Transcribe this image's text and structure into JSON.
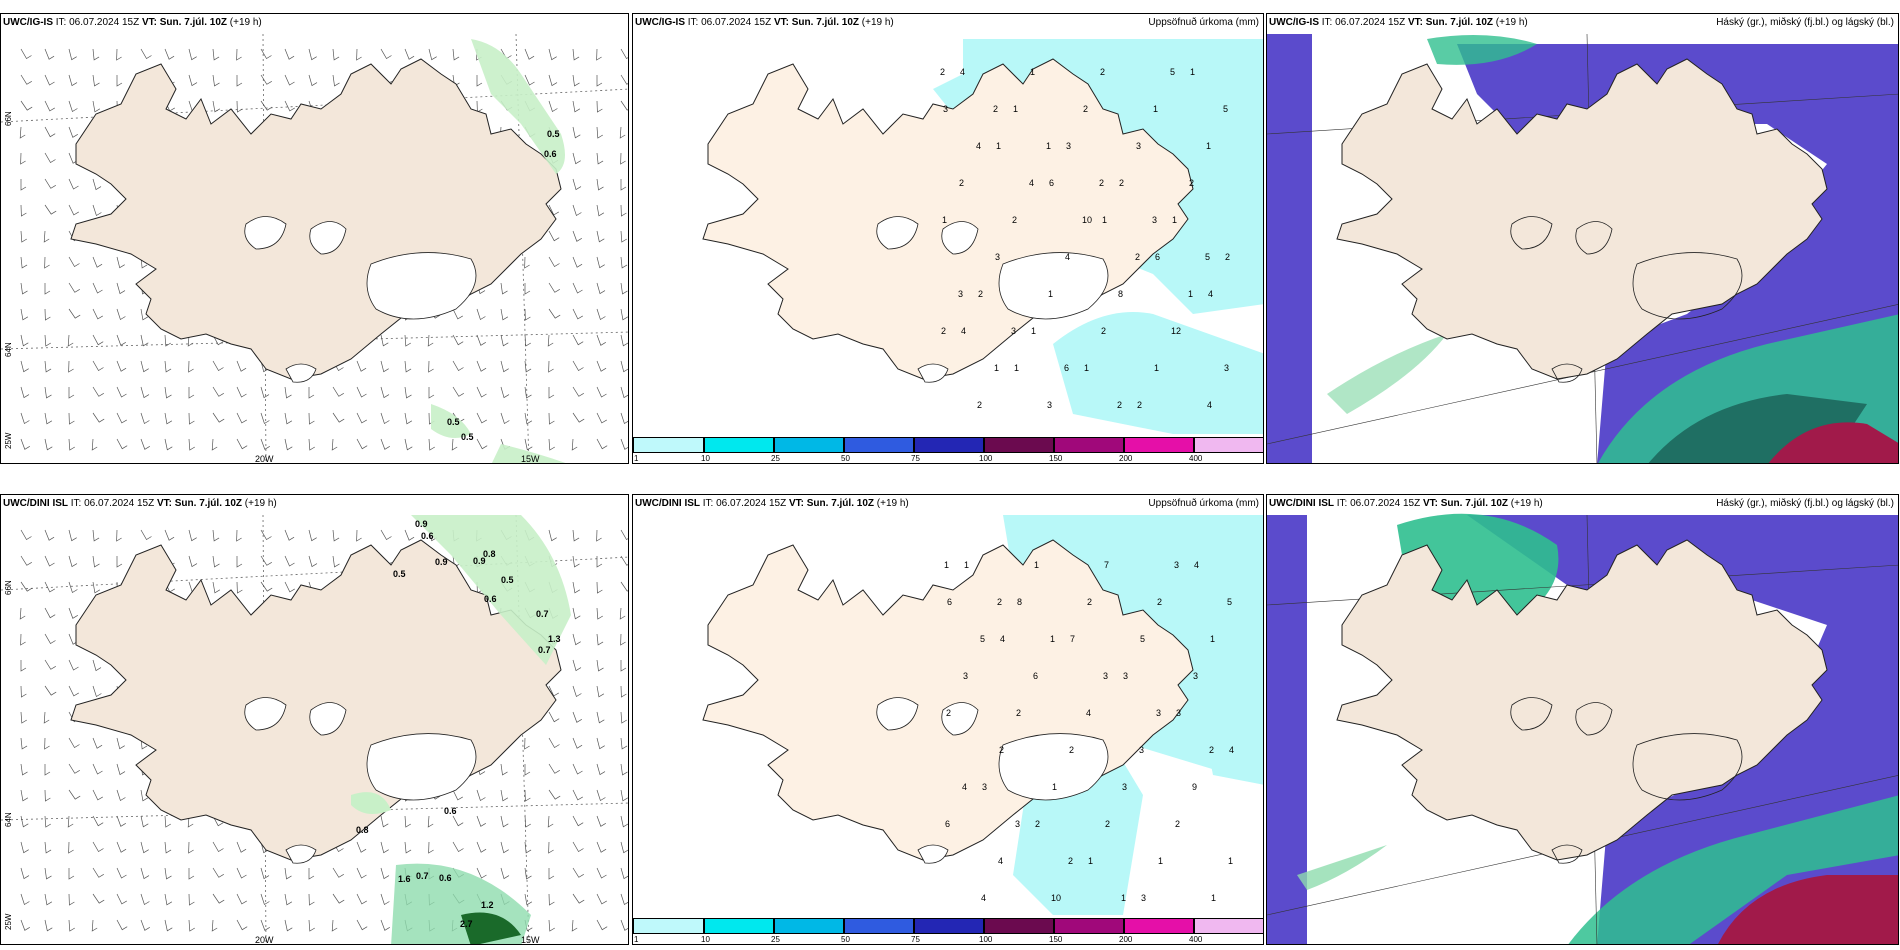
{
  "panels": {
    "p1": {
      "model": "UWC/IG-IS",
      "it": "IT: 06.07.2024 15Z",
      "vt_label": "VT:",
      "vt": "Sun. 7.júl. 10Z",
      "offset": "(+19 h)",
      "title": ""
    },
    "p2": {
      "model": "UWC/IG-IS",
      "it": "IT: 06.07.2024 15Z",
      "vt_label": "VT:",
      "vt": "Sun. 7.júl. 10Z",
      "offset": "(+19 h)",
      "title": "Uppsöfnuð úrkoma (mm)"
    },
    "p3": {
      "model": "UWC/IG-IS",
      "it": "IT: 06.07.2024 15Z",
      "vt_label": "VT:",
      "vt": "Sun. 7.júl. 10Z",
      "offset": "(+19 h)",
      "title": "Háský (gr.), miðský (fj.bl.) og lágský (bl.)"
    },
    "p4": {
      "model": "UWC/DINI ISL",
      "it": "IT: 06.07.2024 15Z",
      "vt_label": "VT:",
      "vt": "Sun. 7.júl. 10Z",
      "offset": "(+19 h)",
      "title": ""
    },
    "p5": {
      "model": "UWC/DINI ISL",
      "it": "IT: 06.07.2024 15Z",
      "vt_label": "VT:",
      "vt": "Sun. 7.júl. 10Z",
      "offset": "(+19 h)",
      "title": "Uppsöfnuð úrkoma (mm)"
    },
    "p6": {
      "model": "UWC/DINI ISL",
      "it": "IT: 06.07.2024 15Z",
      "vt_label": "VT:",
      "vt": "Sun. 7.júl. 10Z",
      "offset": "(+19 h)",
      "title": "Háský (gr.), miðský (fj.bl.) og lágský (bl.)"
    }
  },
  "axis": {
    "lon_20w": "20W",
    "lon_15w": "15W",
    "lat_66n": "66N",
    "lat_64n": "64N",
    "lon_25w": "25W"
  },
  "colorbar": {
    "ticks": [
      "1",
      "10",
      "25",
      "50",
      "75",
      "100",
      "150",
      "200",
      "400"
    ],
    "colors": [
      "#bff9fb",
      "#00e8ee",
      "#00b8e6",
      "#2f5be0",
      "#2326b4",
      "#6b0a4f",
      "#a0087a",
      "#e50fa8",
      "#f0b8f0"
    ]
  },
  "wind_values": {
    "top": [
      "0.5",
      "0.6",
      "0.5",
      "0.5"
    ],
    "bottom": [
      "0.9",
      "0.6",
      "0.9",
      "0.9",
      "0.8",
      "0.5",
      "0.5",
      "0.6",
      "0.7",
      "1.3",
      "0.7",
      "0.6",
      "0.8",
      "1.6",
      "0.7",
      "0.6",
      "1.2",
      "2.7"
    ]
  },
  "precip_numbers": {
    "top": [
      "2",
      "2",
      "1",
      "2",
      "3",
      "5",
      "3",
      "3",
      "6",
      "2",
      "5",
      "5",
      "4",
      "4",
      "10",
      "2",
      "1",
      "2",
      "1",
      "3",
      "2",
      "1",
      "1",
      "2",
      "2",
      "4",
      "8",
      "12",
      "3",
      "2",
      "1",
      "2",
      "3",
      "2",
      "1",
      "3",
      "1",
      "2",
      "1",
      "4",
      "4",
      "1",
      "3",
      "2",
      "1",
      "2",
      "2",
      "1",
      "1",
      "2",
      "1",
      "3",
      "1",
      "6",
      "1",
      "6",
      "4",
      "4",
      "1"
    ],
    "bottom": [
      "1",
      "2",
      "1",
      "3",
      "3",
      "2",
      "4",
      "3",
      "2",
      "1",
      "3",
      "5",
      "5",
      "6",
      "4",
      "3",
      "9",
      "6",
      "4",
      "10",
      "7",
      "2",
      "1",
      "3",
      "2",
      "2",
      "3",
      "2",
      "1",
      "4",
      "1",
      "2",
      "5",
      "3",
      "2",
      "2",
      "1",
      "2",
      "1",
      "1",
      "1",
      "8",
      "7",
      "3",
      "3",
      "4",
      "3",
      "2",
      "1",
      "3",
      "4",
      "6",
      "4"
    ]
  },
  "colors": {
    "land": "#f3e7da",
    "coast": "#222222",
    "ice": "#ffffff",
    "cyan": "#b8f8f8",
    "green_light": "#c8f0c8",
    "green_mid": "#8fdcae",
    "green_dark": "#1a6a2a",
    "blue_cloud": "#5b4bcc",
    "teal": "#2fbf8f",
    "red": "#a11a4a"
  }
}
